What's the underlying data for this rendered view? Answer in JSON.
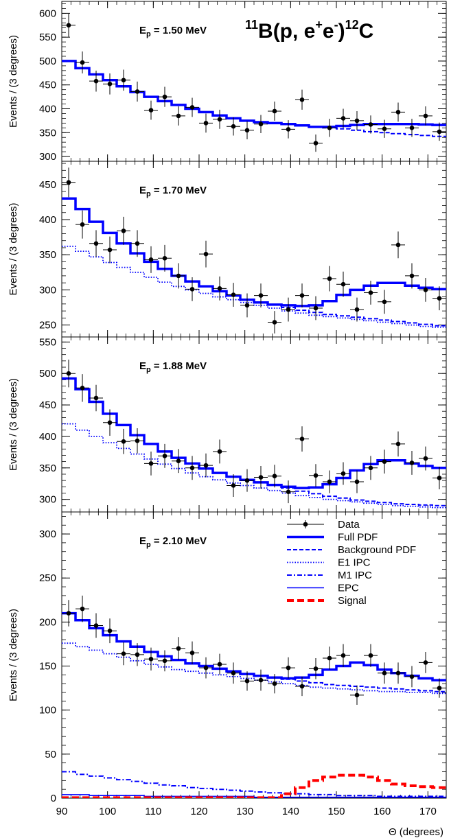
{
  "chart_data": {
    "type": "line",
    "title": {
      "pre_sup": "11",
      "main": "B(p, e",
      "sup1": "+",
      "mid": "e",
      "sup2": "-",
      "post": ")",
      "sup3": "12",
      "end": "C"
    },
    "xlabel": "Θ (degrees)",
    "xlim": [
      90,
      174
    ],
    "xticks": [
      90,
      100,
      110,
      120,
      130,
      140,
      150,
      160,
      170
    ],
    "legend": {
      "placement": "top-right of bottom panel",
      "entries": [
        {
          "name": "Data",
          "style": "marker"
        },
        {
          "name": "Full PDF",
          "style": "thick-solid",
          "color": "#0000ff"
        },
        {
          "name": "Background PDF",
          "style": "dashed",
          "color": "#0000ff"
        },
        {
          "name": "E1 IPC",
          "style": "dotted",
          "color": "#0000ff"
        },
        {
          "name": "M1 IPC",
          "style": "dashdot",
          "color": "#0000ff"
        },
        {
          "name": "EPC",
          "style": "thin-solid",
          "color": "#0000ff"
        },
        {
          "name": "Signal",
          "style": "dashed",
          "color": "#ff0000"
        }
      ]
    },
    "panels": [
      {
        "ylabel": "Events / (3 degrees)",
        "ep": {
          "sym": "E",
          "sub": "p",
          "value": " = 1.50 MeV"
        },
        "ylim": [
          290,
          625
        ],
        "yticks": [
          300,
          350,
          400,
          450,
          500,
          550,
          600
        ],
        "data_x": [
          91.5,
          94.5,
          97.5,
          100.5,
          103.5,
          106.5,
          109.5,
          112.5,
          115.5,
          118.5,
          121.5,
          124.5,
          127.5,
          130.5,
          133.5,
          136.5,
          139.5,
          142.5,
          145.5,
          148.5,
          151.5,
          154.5,
          157.5,
          160.5,
          163.5,
          166.5,
          169.5,
          172.5
        ],
        "data_y": [
          575,
          497,
          458,
          452,
          460,
          436,
          397,
          425,
          385,
          403,
          370,
          378,
          363,
          355,
          368,
          395,
          357,
          419,
          328,
          360,
          380,
          375,
          367,
          358,
          393,
          360,
          385,
          352
        ],
        "data_err": [
          24,
          23,
          22,
          22,
          22,
          21,
          20,
          21,
          20,
          20,
          20,
          20,
          19,
          19,
          19,
          20,
          19,
          21,
          18,
          19,
          20,
          20,
          19,
          19,
          20,
          19,
          20,
          19
        ],
        "series": [
          {
            "role": "full_pdf",
            "style": "thick-solid",
            "values": [
              500,
              485,
              472,
              460,
              447,
              435,
              425,
              416,
              408,
              400,
              393,
              386,
              380,
              375,
              372,
              370,
              368,
              365,
              362,
              362,
              364,
              366,
              368,
              368,
              368,
              368,
              367,
              366
            ]
          },
          {
            "role": "background",
            "style": "dashed",
            "values": [
              500,
              485,
              472,
              460,
              447,
              435,
              425,
              416,
              408,
              400,
              393,
              386,
              380,
              375,
              372,
              370,
              368,
              365,
              362,
              360,
              358,
              355,
              352,
              350,
              348,
              346,
              344,
              342
            ]
          }
        ]
      },
      {
        "ylabel": "Events / (3 degrees)",
        "ep": {
          "sym": "E",
          "sub": "p",
          "value": " = 1.70 MeV"
        },
        "ylim": [
          233,
          483
        ],
        "yticks": [
          250,
          300,
          350,
          400,
          450
        ],
        "data_x": [
          91.5,
          94.5,
          97.5,
          100.5,
          103.5,
          106.5,
          109.5,
          112.5,
          115.5,
          118.5,
          121.5,
          124.5,
          127.5,
          130.5,
          133.5,
          136.5,
          139.5,
          142.5,
          145.5,
          148.5,
          151.5,
          154.5,
          157.5,
          160.5,
          163.5,
          166.5,
          169.5,
          172.5
        ],
        "data_y": [
          453,
          393,
          366,
          357,
          384,
          366,
          343,
          345,
          320,
          301,
          351,
          302,
          293,
          278,
          292,
          254,
          272,
          292,
          274,
          316,
          308,
          272,
          296,
          283,
          364,
          320,
          300,
          288
        ],
        "data_err": [
          21,
          20,
          19,
          19,
          20,
          19,
          19,
          19,
          18,
          17,
          19,
          17,
          17,
          17,
          17,
          16,
          17,
          17,
          17,
          18,
          18,
          17,
          17,
          17,
          19,
          18,
          17,
          17
        ],
        "series": [
          {
            "role": "full_pdf",
            "style": "thick-solid",
            "values": [
              430,
              415,
              397,
              381,
              366,
              352,
              340,
              330,
              320,
              312,
              305,
              298,
              292,
              286,
              282,
              279,
              278,
              277,
              278,
              284,
              293,
              300,
              306,
              310,
              310,
              306,
              303,
              301
            ]
          },
          {
            "role": "background",
            "style": "dashed",
            "values": [
              430,
              415,
              397,
              381,
              366,
              352,
              340,
              330,
              320,
              312,
              305,
              298,
              292,
              286,
              282,
              279,
              275,
              271,
              268,
              265,
              263,
              261,
              259,
              257,
              255,
              253,
              251,
              249
            ]
          },
          {
            "role": "e1_ipc",
            "style": "dotted",
            "values": [
              362,
              355,
              347,
              339,
              332,
              325,
              318,
              311,
              305,
              300,
              295,
              290,
              286,
              282,
              278,
              274,
              270,
              267,
              264,
              262,
              260,
              258,
              256,
              254,
              252,
              250,
              248,
              247
            ]
          }
        ]
      },
      {
        "ylabel": "Events / (3 degrees)",
        "ep": {
          "sym": "E",
          "sub": "p",
          "value": " = 1.88 MeV"
        },
        "ylim": [
          280,
          558
        ],
        "yticks": [
          300,
          350,
          400,
          450,
          500,
          550
        ],
        "data_x": [
          91.5,
          94.5,
          97.5,
          100.5,
          103.5,
          106.5,
          109.5,
          112.5,
          115.5,
          118.5,
          121.5,
          124.5,
          127.5,
          130.5,
          133.5,
          136.5,
          139.5,
          142.5,
          145.5,
          148.5,
          151.5,
          154.5,
          157.5,
          160.5,
          163.5,
          166.5,
          169.5,
          172.5
        ],
        "data_y": [
          500,
          477,
          461,
          422,
          392,
          393,
          357,
          369,
          361,
          350,
          354,
          376,
          322,
          330,
          335,
          337,
          312,
          396,
          338,
          328,
          341,
          328,
          350,
          360,
          388,
          358,
          365,
          334
        ],
        "data_err": [
          22,
          22,
          21,
          21,
          20,
          20,
          19,
          19,
          19,
          19,
          19,
          19,
          18,
          18,
          18,
          18,
          18,
          20,
          18,
          18,
          18,
          18,
          19,
          19,
          20,
          19,
          19,
          18
        ],
        "series": [
          {
            "role": "full_pdf",
            "style": "thick-solid",
            "values": [
              492,
              475,
              455,
              436,
              418,
              402,
              388,
              376,
              366,
              357,
              349,
              342,
              336,
              331,
              327,
              323,
              320,
              318,
              319,
              324,
              334,
              346,
              356,
              362,
              362,
              357,
              353,
              350
            ]
          },
          {
            "role": "background",
            "style": "dashed",
            "values": [
              492,
              475,
              455,
              436,
              418,
              402,
              388,
              376,
              366,
              357,
              349,
              342,
              336,
              331,
              327,
              323,
              318,
              313,
              309,
              305,
              302,
              299,
              297,
              295,
              293,
              292,
              291,
              290
            ]
          },
          {
            "role": "e1_ipc",
            "style": "dotted",
            "values": [
              420,
              410,
              400,
              390,
              381,
              372,
              364,
              356,
              349,
              342,
              336,
              331,
              326,
              322,
              318,
              314,
              310,
              306,
              303,
              300,
              298,
              296,
              294,
              292,
              290,
              289,
              288,
              287
            ]
          }
        ]
      },
      {
        "ylabel": "Events / (3 degrees)",
        "ep": {
          "sym": "E",
          "sub": "p",
          "value": " = 2.10 MeV"
        },
        "ylim": [
          0,
          325
        ],
        "yticks": [
          0,
          50,
          100,
          150,
          200,
          250,
          300
        ],
        "data_x": [
          91.5,
          94.5,
          97.5,
          100.5,
          103.5,
          106.5,
          109.5,
          112.5,
          115.5,
          118.5,
          121.5,
          124.5,
          127.5,
          130.5,
          133.5,
          136.5,
          139.5,
          142.5,
          145.5,
          148.5,
          151.5,
          154.5,
          157.5,
          160.5,
          163.5,
          166.5,
          169.5,
          172.5
        ],
        "data_y": [
          210,
          215,
          196,
          190,
          164,
          163,
          158,
          156,
          170,
          165,
          148,
          152,
          142,
          133,
          134,
          130,
          148,
          127,
          147,
          159,
          162,
          117,
          162,
          142,
          142,
          138,
          154,
          125
        ],
        "data_err": [
          15,
          15,
          14,
          14,
          13,
          13,
          13,
          12,
          13,
          13,
          12,
          12,
          12,
          11,
          12,
          11,
          12,
          11,
          12,
          13,
          13,
          11,
          13,
          12,
          12,
          12,
          12,
          11
        ],
        "series": [
          {
            "role": "full_pdf",
            "style": "thick-solid",
            "values": [
              210,
              202,
              193,
              185,
              178,
              172,
              166,
              161,
              157,
              153,
              150,
              147,
              144,
              141,
              139,
              137,
              136,
              137,
              140,
              146,
              150,
              154,
              151,
              146,
              142,
              139,
              136,
              134
            ]
          },
          {
            "role": "background",
            "style": "dashed",
            "values": [
              210,
              202,
              193,
              185,
              178,
              172,
              166,
              161,
              157,
              153,
              150,
              147,
              144,
              141,
              139,
              137,
              135,
              133,
              131,
              129,
              128,
              127,
              126,
              125,
              124,
              123,
              122,
              121
            ]
          },
          {
            "role": "e1_ipc",
            "style": "dotted",
            "values": [
              176,
              172,
              168,
              164,
              160,
              156,
              152,
              149,
              146,
              144,
              142,
              140,
              138,
              136,
              134,
              132,
              130,
              128,
              126,
              125,
              124,
              123,
              122,
              121,
              121,
              120,
              120,
              119
            ]
          },
          {
            "role": "m1_ipc",
            "style": "dashdot",
            "values": [
              30,
              27,
              25,
              23,
              21,
              19,
              17,
              15,
              14,
              12,
              11,
              10,
              9,
              8,
              7,
              6,
              5,
              5,
              4,
              4,
              3,
              3,
              3,
              2,
              2,
              2,
              2,
              2
            ]
          },
          {
            "role": "epc",
            "style": "thin-solid",
            "values": [
              4,
              4,
              3,
              3,
              3,
              3,
              2,
              2,
              2,
              2,
              2,
              2,
              2,
              2,
              1,
              1,
              1,
              1,
              1,
              1,
              1,
              1,
              1,
              1,
              1,
              1,
              1,
              1
            ]
          },
          {
            "role": "signal",
            "style": "signal",
            "values": [
              0.5,
              0.5,
              0.5,
              0.5,
              0.5,
              0.5,
              0.5,
              0.5,
              0.5,
              0.5,
              0.5,
              0.5,
              0.5,
              0.5,
              0.5,
              0.5,
              5,
              12,
              20,
              24,
              26,
              26,
              24,
              20,
              16,
              14,
              13,
              12
            ]
          }
        ]
      }
    ]
  }
}
